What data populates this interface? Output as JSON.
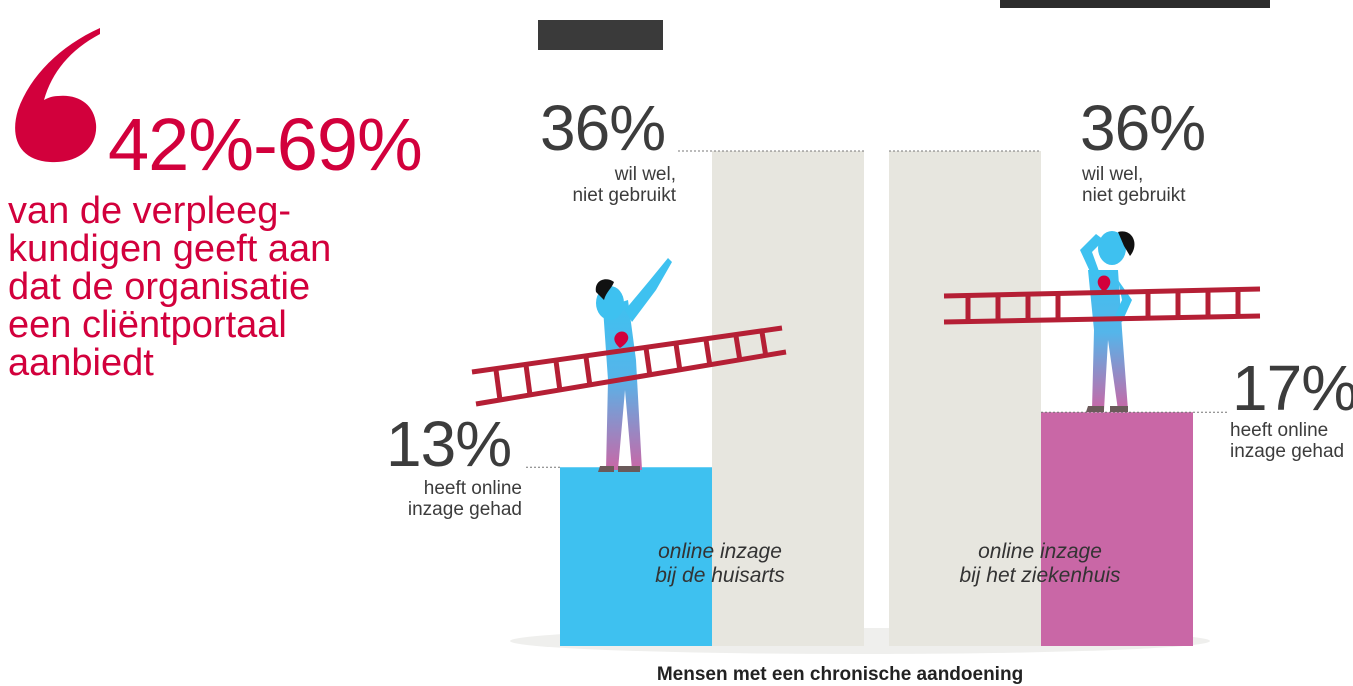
{
  "quote": {
    "highlight": "42%-69%",
    "lines": [
      "van de verpleeg-",
      "kundigen geeft aan",
      "dat de organisatie",
      "een cliëntportaal",
      "aanbiedt"
    ]
  },
  "chart_data": {
    "type": "bar",
    "footer": "Mensen met een chronische aandoening",
    "ylim": [
      0,
      40
    ],
    "groups": [
      {
        "caption_line1": "online inzage",
        "caption_line2": "bij de huisarts",
        "bars": [
          {
            "name": "heeft online inzage gehad",
            "value": 13,
            "value_label": "13%",
            "label_line1": "heeft online",
            "label_line2": "inzage gehad",
            "color": "#3ec1f0"
          },
          {
            "name": "wil wel, niet gebruikt",
            "value": 36,
            "value_label": "36%",
            "label_line1": "wil wel,",
            "label_line2": "niet gebruikt",
            "color": "#e7e6df"
          }
        ]
      },
      {
        "caption_line1": "online inzage",
        "caption_line2": "bij het ziekenhuis",
        "bars": [
          {
            "name": "wil wel, niet gebruikt",
            "value": 36,
            "value_label": "36%",
            "label_line1": "wil wel,",
            "label_line2": "niet gebruikt",
            "color": "#e7e6df"
          },
          {
            "name": "heeft online inzage gehad",
            "value": 17,
            "value_label": "17%",
            "label_line1": "heeft online",
            "label_line2": "inzage gehad",
            "color": "#c967a6"
          }
        ]
      }
    ]
  },
  "colors": {
    "accent_red": "#d2003c",
    "ladder": "#b51f35",
    "figure_top": "#3ec1f0",
    "figure_bottom": "#c967a6"
  }
}
